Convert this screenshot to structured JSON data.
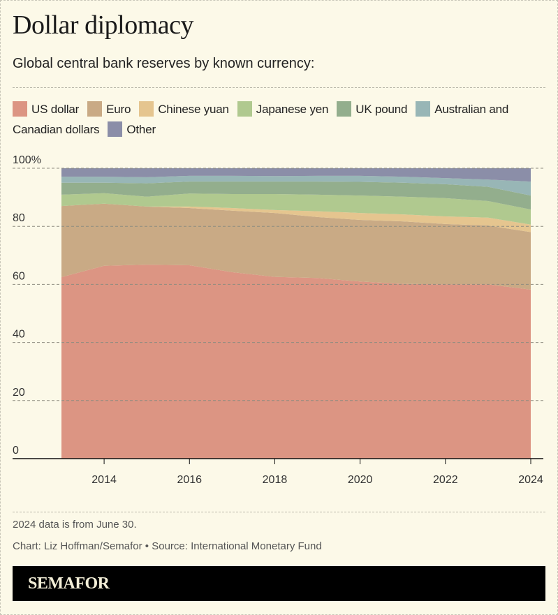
{
  "header": {
    "title": "Dollar diplomacy",
    "subtitle": "Global central bank reserves by known currency:"
  },
  "chart_data": {
    "type": "area",
    "stacked": true,
    "x": [
      2013,
      2014,
      2015,
      2016,
      2017,
      2018,
      2019,
      2020,
      2021,
      2022,
      2023,
      2024
    ],
    "xticks": [
      "2014",
      "2016",
      "2018",
      "2020",
      "2022",
      "2024"
    ],
    "yticks": [
      "100%",
      "80",
      "60",
      "40",
      "20",
      "0"
    ],
    "ylim": [
      0,
      100
    ],
    "grid": true,
    "legend_position": "top",
    "series": [
      {
        "name": "US dollar",
        "color": "#dc9583",
        "values": [
          62.5,
          66.4,
          66.8,
          66.6,
          64.2,
          62.6,
          62.2,
          61.0,
          60.2,
          60.0,
          60.0,
          58.2
        ]
      },
      {
        "name": "Euro",
        "color": "#c9aa85",
        "values": [
          24.5,
          21.4,
          20.0,
          19.7,
          21.2,
          22.0,
          21.0,
          21.2,
          21.5,
          20.8,
          20.3,
          19.8
        ]
      },
      {
        "name": "Chinese yuan",
        "color": "#e5c58f",
        "values": [
          0,
          0,
          0,
          0.5,
          0.9,
          1.0,
          2.0,
          2.4,
          2.4,
          2.6,
          2.7,
          2.6
        ]
      },
      {
        "name": "Japanese yen",
        "color": "#b0c98f",
        "values": [
          3.9,
          3.6,
          3.4,
          4.5,
          4.8,
          5.5,
          5.7,
          6.0,
          6.1,
          6.3,
          5.7,
          5.2
        ]
      },
      {
        "name": "UK pound",
        "color": "#93ae8d",
        "values": [
          4.1,
          3.6,
          4.6,
          4.1,
          4.3,
          4.3,
          4.5,
          4.7,
          4.8,
          4.8,
          4.9,
          4.8
        ]
      },
      {
        "name": "Australian and Canadian dollars",
        "color": "#98b6b6",
        "values": [
          2.1,
          2.1,
          2.1,
          2.0,
          2.0,
          1.9,
          2.0,
          2.1,
          2.1,
          2.1,
          2.5,
          4.8
        ]
      },
      {
        "name": "Other",
        "color": "#8b8ea8",
        "values": [
          2.9,
          2.9,
          3.1,
          2.6,
          2.6,
          2.7,
          2.6,
          2.6,
          2.9,
          3.4,
          3.9,
          4.6
        ]
      }
    ]
  },
  "footer": {
    "note": "2024 data is from June 30.",
    "credit": "Chart: Liz Hoffman/Semafor • Source: International Monetary Fund",
    "brand": "SEMAFOR"
  }
}
